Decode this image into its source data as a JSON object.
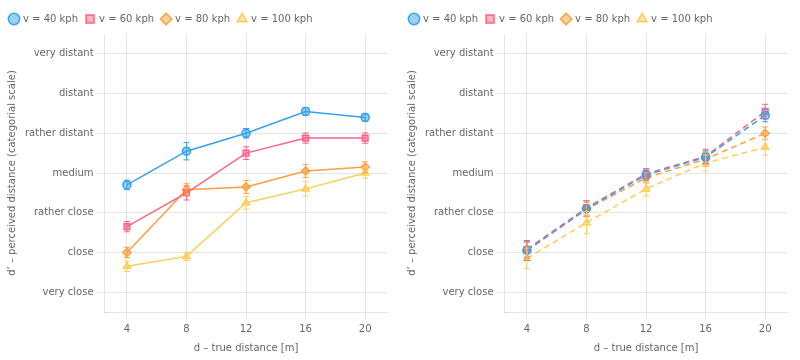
{
  "chart_data": [
    {
      "type": "line",
      "x_label": "d – true distance [m]",
      "y_label": "d’ – perceived distance (categorial scale)",
      "x": [
        4,
        8,
        12,
        16,
        20
      ],
      "xlim": [
        2.5,
        21.5
      ],
      "xticks": [
        4,
        8,
        12,
        16,
        20
      ],
      "ylim": [
        0.5,
        7.5
      ],
      "yticks": [
        {
          "value": 1,
          "label": "very close"
        },
        {
          "value": 2,
          "label": "close"
        },
        {
          "value": 3,
          "label": "rather close"
        },
        {
          "value": 4,
          "label": "medium"
        },
        {
          "value": 5,
          "label": "rather distant"
        },
        {
          "value": 6,
          "label": "distant"
        },
        {
          "value": 7,
          "label": "very distant"
        }
      ],
      "grid": true,
      "legend": "upper left",
      "series": [
        {
          "name": "v = 40 kph",
          "values": [
            3.7,
            4.55,
            5.0,
            5.55,
            5.4
          ],
          "yerr": [
            0.12,
            0.22,
            0.12,
            0.1,
            0.1
          ],
          "marker": "circle",
          "line_style": "solid"
        },
        {
          "name": "v = 60 kph",
          "values": [
            2.65,
            3.5,
            4.5,
            4.88,
            4.88
          ],
          "yerr": [
            0.13,
            0.18,
            0.16,
            0.13,
            0.13
          ],
          "marker": "square",
          "line_style": "solid"
        },
        {
          "name": "v = 80 kph",
          "values": [
            2.0,
            3.58,
            3.65,
            4.05,
            4.15
          ],
          "yerr": [
            0.13,
            0.15,
            0.16,
            0.16,
            0.13
          ],
          "marker": "diamond",
          "line_style": "solid"
        },
        {
          "name": "v = 100 kph",
          "values": [
            1.65,
            1.9,
            3.25,
            3.6,
            4.0
          ],
          "yerr": [
            0.13,
            0.1,
            0.16,
            0.18,
            0.13
          ],
          "marker": "triangle",
          "line_style": "solid"
        }
      ]
    },
    {
      "type": "line",
      "x_label": "d – true distance [m]",
      "y_label": "d’ – perceived distance (categorial scale)",
      "x": [
        4,
        8,
        12,
        16,
        20
      ],
      "xlim": [
        2.5,
        21.5
      ],
      "xticks": [
        4,
        8,
        12,
        16,
        20
      ],
      "ylim": [
        0.5,
        7.5
      ],
      "yticks": [
        {
          "value": 1,
          "label": "very close"
        },
        {
          "value": 2,
          "label": "close"
        },
        {
          "value": 3,
          "label": "rather close"
        },
        {
          "value": 4,
          "label": "medium"
        },
        {
          "value": 5,
          "label": "rather distant"
        },
        {
          "value": 6,
          "label": "distant"
        },
        {
          "value": 7,
          "label": "very distant"
        }
      ],
      "grid": true,
      "legend": "upper left",
      "series": [
        {
          "name": "v = 40 kph",
          "values": [
            2.05,
            3.1,
            3.95,
            4.4,
            5.45
          ],
          "yerr": [
            0.25,
            0.2,
            0.13,
            0.16,
            0.16
          ],
          "marker": "circle",
          "line_style": "dashed"
        },
        {
          "name": "v = 60 kph",
          "values": [
            2.08,
            3.12,
            3.98,
            4.42,
            5.55
          ],
          "yerr": [
            0.2,
            0.18,
            0.13,
            0.18,
            0.18
          ],
          "marker": "square",
          "line_style": "dashed"
        },
        {
          "name": "v = 80 kph",
          "values": [
            2.05,
            3.08,
            3.88,
            4.35,
            5.0
          ],
          "yerr": [
            0.2,
            0.18,
            0.13,
            0.18,
            0.16
          ],
          "marker": "diamond",
          "line_style": "dashed"
        },
        {
          "name": "v = 100 kph",
          "values": [
            1.85,
            2.75,
            3.6,
            4.25,
            4.65
          ],
          "yerr": [
            0.26,
            0.28,
            0.18,
            0.2,
            0.2
          ],
          "marker": "triangle",
          "line_style": "dashed"
        }
      ]
    }
  ]
}
